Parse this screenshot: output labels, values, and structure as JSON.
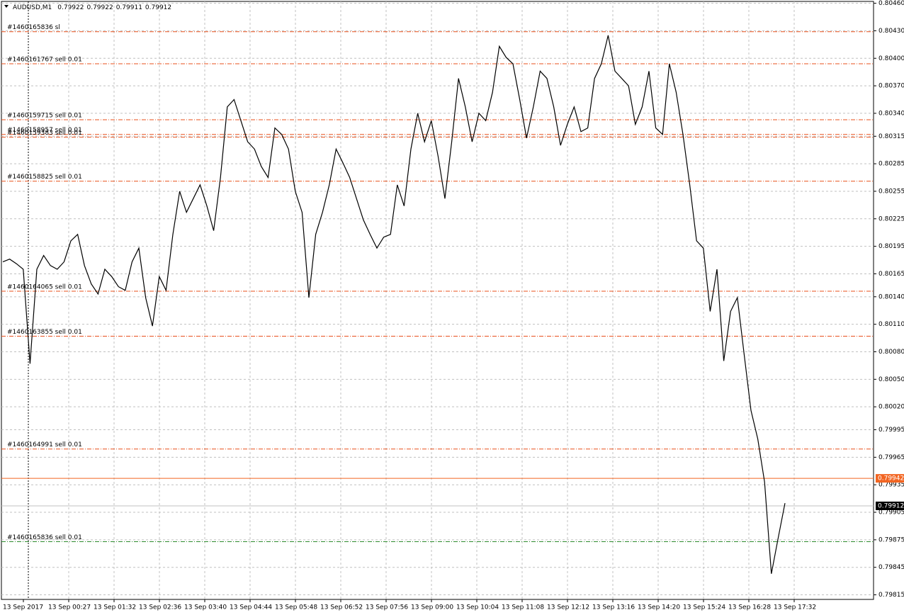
{
  "chart_data": {
    "type": "line",
    "symbol": "AUDUSD,M1",
    "ohlc": [
      0.79922,
      0.79922,
      0.79911,
      0.79912
    ],
    "ylim": [
      0.7981,
      0.80462
    ],
    "yticks": [
      {
        "value": 0.8046,
        "label": "0.80460"
      },
      {
        "value": 0.8043,
        "label": "0.80430"
      },
      {
        "value": 0.804,
        "label": "0.80400"
      },
      {
        "value": 0.8037,
        "label": "0.80370"
      },
      {
        "value": 0.8034,
        "label": "0.80340"
      },
      {
        "value": 0.80315,
        "label": "0.80315"
      },
      {
        "value": 0.80285,
        "label": "0.80285"
      },
      {
        "value": 0.80255,
        "label": "0.80255"
      },
      {
        "value": 0.80225,
        "label": "0.80225"
      },
      {
        "value": 0.80195,
        "label": "0.80195"
      },
      {
        "value": 0.80165,
        "label": "0.80165"
      },
      {
        "value": 0.8014,
        "label": "0.80140"
      },
      {
        "value": 0.8011,
        "label": "0.80110"
      },
      {
        "value": 0.8008,
        "label": "0.80080"
      },
      {
        "value": 0.8005,
        "label": "0.80050"
      },
      {
        "value": 0.8002,
        "label": "0.80020"
      },
      {
        "value": 0.79995,
        "label": "0.79995"
      },
      {
        "value": 0.79965,
        "label": "0.79965"
      },
      {
        "value": 0.79935,
        "label": "0.79935"
      },
      {
        "value": 0.79905,
        "label": "0.79905"
      },
      {
        "value": 0.79875,
        "label": "0.79875"
      },
      {
        "value": 0.79845,
        "label": "0.79845"
      },
      {
        "value": 0.79815,
        "label": "0.79815"
      }
    ],
    "xtick_labels": [
      "13 Sep 2017",
      "13 Sep 00:27",
      "13 Sep 01:32",
      "13 Sep 02:36",
      "13 Sep 03:40",
      "13 Sep 04:44",
      "13 Sep 05:48",
      "13 Sep 06:52",
      "13 Sep 07:56",
      "13 Sep 09:00",
      "13 Sep 10:04",
      "13 Sep 11:08",
      "13 Sep 12:12",
      "13 Sep 13:16",
      "13 Sep 14:20",
      "13 Sep 15:24",
      "13 Sep 16:28",
      "13 Sep 17:32"
    ],
    "grid": true,
    "series": [
      {
        "name": "AUDUSD",
        "color": "#000000",
        "values": [
          0.80178,
          0.80181,
          0.80176,
          0.8017,
          0.80067,
          0.8017,
          0.80185,
          0.80174,
          0.8017,
          0.80178,
          0.80201,
          0.80208,
          0.80174,
          0.80154,
          0.80143,
          0.8017,
          0.80162,
          0.80151,
          0.80147,
          0.80178,
          0.80193,
          0.80139,
          0.80108,
          0.80162,
          0.80147,
          0.80208,
          0.80255,
          0.80232,
          0.80247,
          0.80262,
          0.80239,
          0.80212,
          0.8027,
          0.80347,
          0.80355,
          0.80332,
          0.80309,
          0.80301,
          0.80282,
          0.8027,
          0.80324,
          0.80317,
          0.80301,
          0.80255,
          0.80232,
          0.80139,
          0.80208,
          0.80232,
          0.80262,
          0.80301,
          0.80286,
          0.8027,
          0.80247,
          0.80224,
          0.80208,
          0.80193,
          0.80205,
          0.80208,
          0.80262,
          0.80239,
          0.80301,
          0.8034,
          0.80309,
          0.80332,
          0.80293,
          0.80247,
          0.80309,
          0.80378,
          0.80347,
          0.80309,
          0.8034,
          0.80332,
          0.80363,
          0.80413,
          0.80401,
          0.80394,
          0.80355,
          0.80313,
          0.80347,
          0.80386,
          0.80378,
          0.80347,
          0.80305,
          0.80328,
          0.80347,
          0.8032,
          0.80324,
          0.80378,
          0.80394,
          0.80425,
          0.80386,
          0.80378,
          0.8037,
          0.80328,
          0.80347,
          0.80386,
          0.80324,
          0.80317,
          0.80394,
          0.80363,
          0.80317,
          0.80262,
          0.80201,
          0.80193,
          0.80124,
          0.8017,
          0.8007,
          0.80124,
          0.80139,
          0.80077,
          0.80016,
          0.79985,
          0.79938,
          0.79838,
          0.79877,
          0.79915
        ]
      }
    ],
    "orders": [
      {
        "label": "#1460165836 sl",
        "price": 0.80429,
        "color": "#e8501c"
      },
      {
        "label": "#1460161767 sell 0.01",
        "price": 0.80394,
        "color": "#e8501c"
      },
      {
        "label": "#1460159715 sell 0.01",
        "price": 0.80333,
        "color": "#e8501c"
      },
      {
        "label": "#1460158957 sell 0.01",
        "price": 0.80317,
        "color": "#e8501c"
      },
      {
        "label": "#1460159383 sell 0.01",
        "price": 0.80314,
        "color": "#e8501c"
      },
      {
        "label": "#1460158825 sell 0.01",
        "price": 0.80266,
        "color": "#e8501c"
      },
      {
        "label": "#1460164065 sell 0.01",
        "price": 0.80146,
        "color": "#e8501c"
      },
      {
        "label": "#1460163855 sell 0.01",
        "price": 0.80097,
        "color": "#e8501c"
      },
      {
        "label": "#1460164991 sell 0.01",
        "price": 0.79974,
        "color": "#e8501c"
      },
      {
        "label": "#1460165836 sell 0.01",
        "price": 0.79873,
        "color": "#2e8b2e"
      }
    ],
    "ask": {
      "price": 0.79942,
      "color": "#f26522"
    },
    "bid": {
      "price": 0.79912,
      "color": "#000000"
    }
  }
}
